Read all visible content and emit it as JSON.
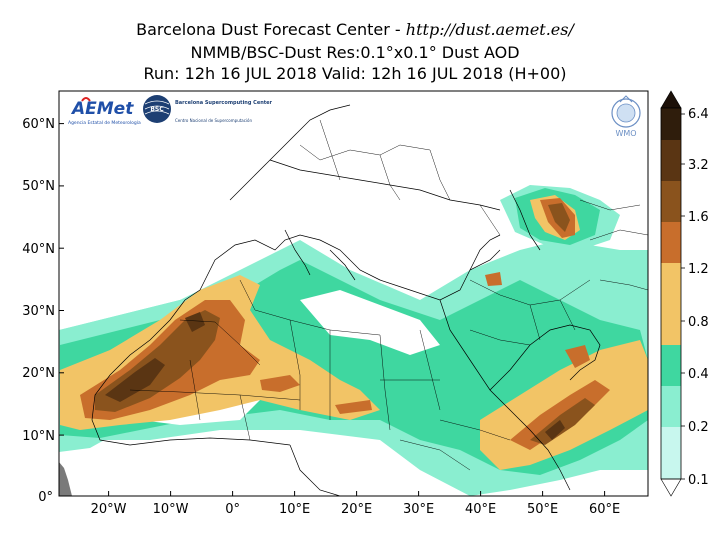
{
  "header": {
    "line1_prefix": "Barcelona Dust Forecast Center - ",
    "line1_url": "http://dust.aemet.es/",
    "line2": "NMMB/BSC-Dust   Res:0.1°x0.1°   Dust AOD",
    "line3": "Run: 12h 16 JUL 2018   Valid: 12h 16 JUL 2018 (H+00)"
  },
  "map": {
    "lat_ticks": [
      "60°N",
      "50°N",
      "40°N",
      "30°N",
      "20°N",
      "10°N",
      "0°"
    ],
    "lon_ticks": [
      "20°W",
      "10°W",
      "0°",
      "10°E",
      "20°E",
      "30°E",
      "40°E",
      "50°E",
      "60°E"
    ],
    "extent": {
      "lon_min": -28,
      "lon_max": 67,
      "lat_min": 0,
      "lat_max": 65
    }
  },
  "colorbar": {
    "labels": [
      "6.4",
      "3.2",
      "1.6",
      "1.2",
      "0.8",
      "0.4",
      "0.2",
      "0.1"
    ],
    "colors": [
      "#2f1d0c",
      "#5a3513",
      "#8a531d",
      "#c86e2c",
      "#f2c466",
      "#3fd7a0",
      "#8aeed0",
      "#c8f7ee"
    ]
  },
  "logos": {
    "aemet": "AEMet",
    "aemet_sub": "Agencia Estatal de Meteorología",
    "bsc_badge": "BSC",
    "bsc_name": "Barcelona Supercomputing Center",
    "bsc_sub": "Centro Nacional de Supercomputación",
    "wmo": "WMO"
  }
}
